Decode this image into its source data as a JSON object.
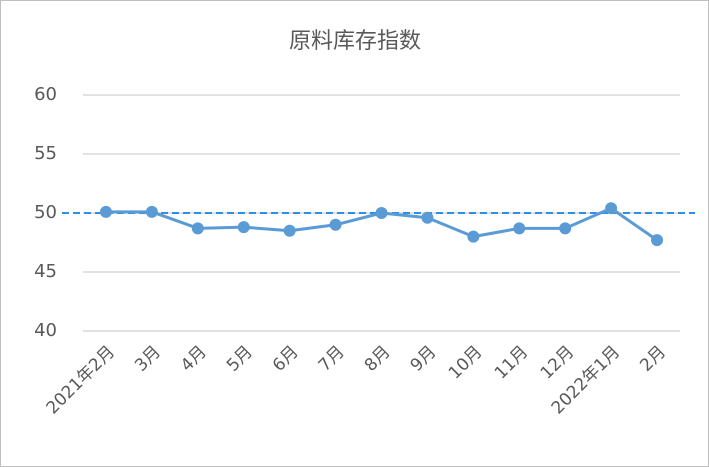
{
  "chart_data": {
    "type": "line",
    "title": "原料库存指数",
    "categories": [
      "2021年2月",
      "3月",
      "4月",
      "5月",
      "6月",
      "7月",
      "8月",
      "9月",
      "10月",
      "11月",
      "12月",
      "2022年1月",
      "2月"
    ],
    "values": [
      50.1,
      50.1,
      48.7,
      48.8,
      48.5,
      49.0,
      50.0,
      49.6,
      48.0,
      48.7,
      48.7,
      50.4,
      47.7
    ],
    "color": "#5b9bd5",
    "ylim": [
      40,
      60
    ],
    "yticks": [
      40,
      45,
      50,
      55,
      60
    ],
    "grid": true,
    "reference_line": {
      "value": 50,
      "color": "#2e8fe8",
      "dashed": true
    }
  }
}
